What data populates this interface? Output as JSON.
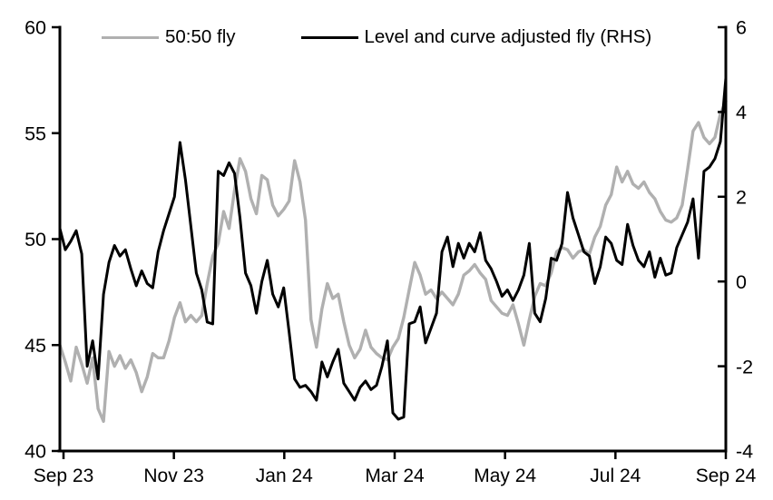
{
  "legend": [
    {
      "label": "50:50 fly",
      "color": "#b0b0b0"
    },
    {
      "label": "Level and curve adjusted fly (RHS)",
      "color": "#000000"
    }
  ],
  "chart_data": {
    "type": "line",
    "title": "",
    "x_axis": {
      "tick_labels": [
        "Sep 23",
        "Nov 23",
        "Jan 24",
        "Mar 24",
        "May 24",
        "Jul 24",
        "Sep 24"
      ]
    },
    "left_axis": {
      "range": [
        40,
        60
      ],
      "ticks": [
        60,
        55,
        50,
        45,
        40
      ]
    },
    "right_axis": {
      "range": [
        -4,
        6
      ],
      "ticks": [
        6,
        4,
        2,
        0,
        -2,
        -4
      ]
    },
    "grid": false,
    "legend_position": "top",
    "series": [
      {
        "name": "50:50 fly",
        "axis": "left",
        "color": "#b0b0b0",
        "values": [
          45.0,
          44.2,
          43.3,
          44.9,
          44.1,
          43.2,
          44.4,
          42.0,
          41.4,
          44.7,
          44.0,
          44.5,
          43.9,
          44.3,
          43.7,
          42.8,
          43.5,
          44.6,
          44.4,
          44.4,
          45.2,
          46.3,
          47.0,
          46.1,
          46.4,
          46.1,
          46.4,
          47.9,
          49.2,
          49.8,
          51.3,
          50.5,
          52.3,
          53.8,
          53.2,
          51.9,
          51.2,
          53.0,
          52.8,
          51.6,
          51.1,
          51.4,
          51.8,
          53.7,
          52.7,
          50.9,
          46.2,
          44.9,
          46.7,
          47.9,
          47.2,
          47.4,
          46.1,
          45.0,
          44.4,
          44.8,
          45.7,
          44.9,
          44.6,
          44.4,
          44.3,
          44.9,
          45.3,
          46.3,
          47.6,
          48.9,
          48.3,
          47.4,
          47.6,
          47.2,
          47.5,
          47.2,
          46.9,
          47.4,
          48.3,
          48.5,
          48.8,
          48.4,
          48.1,
          47.1,
          46.8,
          46.5,
          46.4,
          46.9,
          46.0,
          45.0,
          46.2,
          47.3,
          47.9,
          47.8,
          48.4,
          49.4,
          49.6,
          49.5,
          49.1,
          49.4,
          49.5,
          49.3,
          50.1,
          50.6,
          51.6,
          52.1,
          53.4,
          52.7,
          53.2,
          52.6,
          52.4,
          52.7,
          52.2,
          51.9,
          51.3,
          50.9,
          50.8,
          51.0,
          51.6,
          53.3,
          55.1,
          55.5,
          54.8,
          54.5,
          54.8,
          55.9,
          56.5
        ]
      },
      {
        "name": "Level and curve adjusted fly (RHS)",
        "axis": "right",
        "color": "#000000",
        "values": [
          1.25,
          0.75,
          0.95,
          1.2,
          0.65,
          -2.0,
          -1.4,
          -2.3,
          -0.3,
          0.45,
          0.85,
          0.6,
          0.75,
          0.3,
          -0.1,
          0.25,
          -0.05,
          -0.15,
          0.7,
          1.2,
          1.6,
          2.0,
          3.28,
          2.4,
          1.3,
          0.2,
          -0.2,
          -0.96,
          -1.0,
          2.6,
          2.5,
          2.8,
          2.55,
          1.5,
          0.2,
          -0.1,
          -0.75,
          0.0,
          0.5,
          -0.3,
          -0.6,
          -0.15,
          -1.2,
          -2.3,
          -2.5,
          -2.45,
          -2.6,
          -2.8,
          -1.9,
          -2.25,
          -1.9,
          -1.6,
          -2.4,
          -2.6,
          -2.8,
          -2.5,
          -2.35,
          -2.55,
          -2.45,
          -2.0,
          -1.4,
          -3.1,
          -3.25,
          -3.2,
          -1.0,
          -0.95,
          -0.6,
          -1.45,
          -1.1,
          -0.75,
          0.7,
          1.05,
          0.35,
          0.9,
          0.55,
          0.9,
          0.7,
          1.15,
          0.5,
          0.3,
          0.0,
          -0.35,
          -0.2,
          -0.45,
          -0.2,
          0.15,
          0.9,
          -0.75,
          -0.95,
          -0.4,
          0.55,
          0.5,
          0.9,
          2.1,
          1.5,
          1.1,
          0.7,
          0.6,
          -0.05,
          0.35,
          1.05,
          0.9,
          0.5,
          0.4,
          1.35,
          0.85,
          0.5,
          0.35,
          0.7,
          0.1,
          0.55,
          0.15,
          0.2,
          0.8,
          1.1,
          1.4,
          1.95,
          0.55,
          2.6,
          2.7,
          2.9,
          3.3,
          4.8
        ]
      }
    ]
  }
}
